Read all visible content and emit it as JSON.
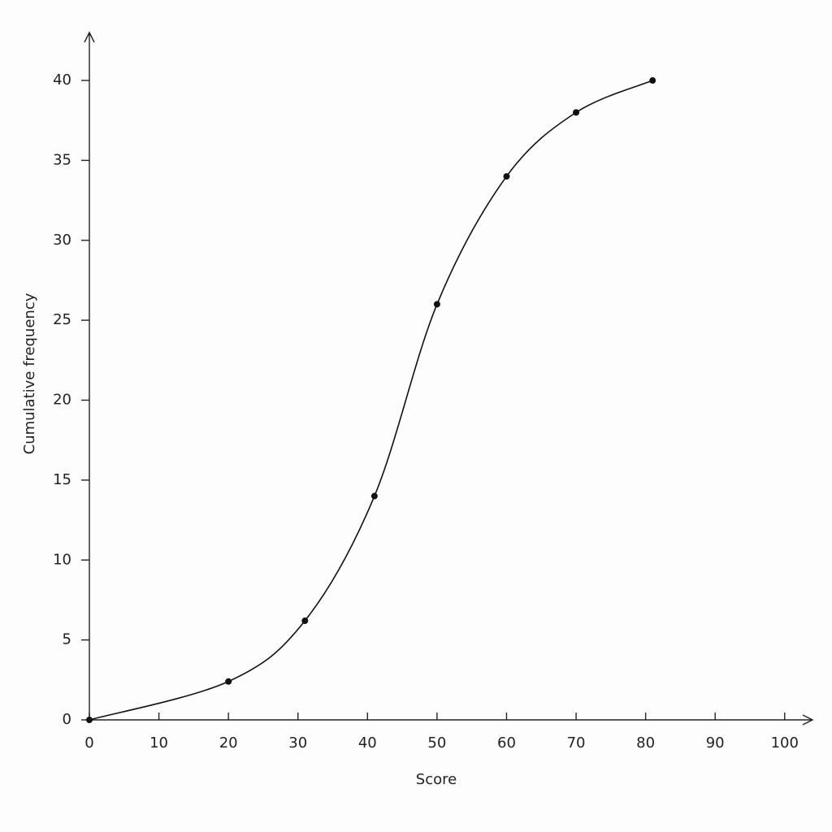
{
  "chart_data": {
    "type": "line",
    "x_label": "Score",
    "y_label": "Cumulative frequency",
    "x": [
      0,
      20,
      31,
      41,
      50,
      60,
      70,
      81
    ],
    "series": [
      {
        "values": [
          0,
          2.4,
          6.2,
          14,
          26,
          34,
          38,
          40
        ],
        "color": "#111111"
      }
    ],
    "xlim": [
      0,
      104
    ],
    "ylim": [
      0,
      43
    ],
    "xticks": [
      0,
      10,
      20,
      30,
      40,
      50,
      60,
      70,
      80,
      90,
      100
    ],
    "yticks": [
      0,
      5,
      10,
      15,
      20,
      25,
      30,
      35,
      40
    ],
    "grid": false,
    "markers": true,
    "smooth": true
  }
}
